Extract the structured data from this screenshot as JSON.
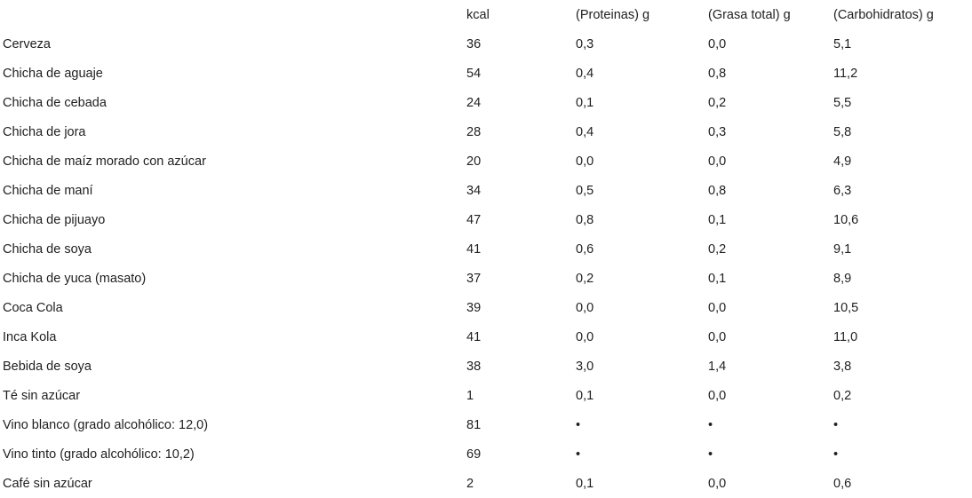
{
  "table": {
    "headers": [
      "",
      "kcal",
      "(Proteinas) g",
      "(Grasa total) g",
      "(Carbohidratos) g"
    ],
    "rows": [
      [
        "Cerveza",
        "36",
        "0,3",
        "0,0",
        "5,1"
      ],
      [
        "Chicha de aguaje",
        "54",
        "0,4",
        "0,8",
        "11,2"
      ],
      [
        "Chicha de cebada",
        "24",
        "0,1",
        "0,2",
        "5,5"
      ],
      [
        "Chicha de jora",
        "28",
        "0,4",
        "0,3",
        "5,8"
      ],
      [
        "Chicha de maíz morado con azúcar",
        "20",
        "0,0",
        "0,0",
        "4,9"
      ],
      [
        "Chicha de maní",
        "34",
        "0,5",
        "0,8",
        "6,3"
      ],
      [
        "Chicha de pijuayo",
        "47",
        "0,8",
        "0,1",
        "10,6"
      ],
      [
        "Chicha de soya",
        "41",
        "0,6",
        "0,2",
        "9,1"
      ],
      [
        "Chicha de yuca (masato)",
        "37",
        "0,2",
        "0,1",
        "8,9"
      ],
      [
        "Coca Cola",
        "39",
        "0,0",
        "0,0",
        "10,5"
      ],
      [
        "Inca Kola",
        "41",
        "0,0",
        "0,0",
        "11,0"
      ],
      [
        "Bebida de soya",
        "38",
        "3,0",
        "1,4",
        "3,8"
      ],
      [
        "Té sin azúcar",
        "1",
        "0,1",
        "0,0",
        "0,2"
      ],
      [
        "Vino blanco (grado alcohólico: 12,0)",
        "81",
        "•",
        "•",
        "•"
      ],
      [
        "Vino tinto (grado alcohólico: 10,2)",
        "69",
        "•",
        "•",
        "•"
      ],
      [
        "Café sin azúcar",
        "2",
        "0,1",
        "0,0",
        "0,6"
      ]
    ]
  }
}
